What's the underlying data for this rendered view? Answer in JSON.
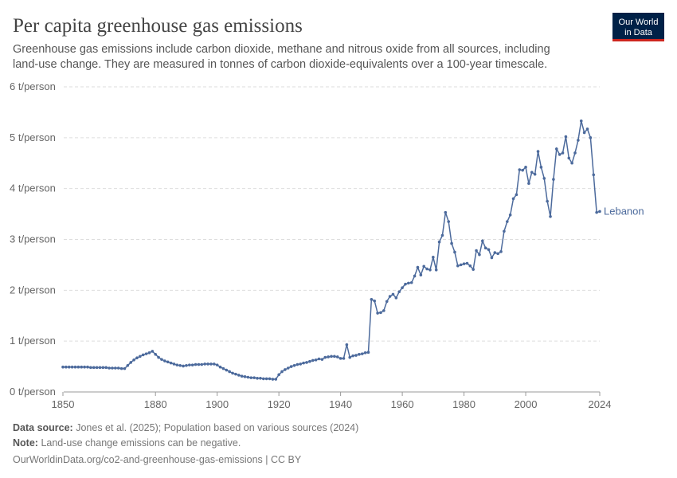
{
  "chart_data": {
    "type": "line",
    "title": "Per capita greenhouse gas emissions",
    "subtitle": [
      "Greenhouse gas emissions include carbon dioxide, methane and nitrous oxide from all sources, including",
      "land-use change. They are measured in tonnes of carbon dioxide-equivalents over a 100-year timescale."
    ],
    "logo": [
      "Our World",
      "in Data"
    ],
    "source": {
      "label": "Data source:",
      "text": "Jones et al. (2025); Population based on various sources (2024)"
    },
    "note": {
      "label": "Note:",
      "text": "Land-use change emissions can be negative."
    },
    "url": "OurWorldinData.org/co2-and-greenhouse-gas-emissions | CC BY",
    "x": [
      1850,
      1851,
      1852,
      1853,
      1854,
      1855,
      1856,
      1857,
      1858,
      1859,
      1860,
      1861,
      1862,
      1863,
      1864,
      1865,
      1866,
      1867,
      1868,
      1869,
      1870,
      1871,
      1872,
      1873,
      1874,
      1875,
      1876,
      1877,
      1878,
      1879,
      1880,
      1881,
      1882,
      1883,
      1884,
      1885,
      1886,
      1887,
      1888,
      1889,
      1890,
      1891,
      1892,
      1893,
      1894,
      1895,
      1896,
      1897,
      1898,
      1899,
      1900,
      1901,
      1902,
      1903,
      1904,
      1905,
      1906,
      1907,
      1908,
      1909,
      1910,
      1911,
      1912,
      1913,
      1914,
      1915,
      1916,
      1917,
      1918,
      1919,
      1920,
      1921,
      1922,
      1923,
      1924,
      1925,
      1926,
      1927,
      1928,
      1929,
      1930,
      1931,
      1932,
      1933,
      1934,
      1935,
      1936,
      1937,
      1938,
      1939,
      1940,
      1941,
      1942,
      1943,
      1944,
      1945,
      1946,
      1947,
      1948,
      1949,
      1950,
      1951,
      1952,
      1953,
      1954,
      1955,
      1956,
      1957,
      1958,
      1959,
      1960,
      1961,
      1962,
      1963,
      1964,
      1965,
      1966,
      1967,
      1968,
      1969,
      1970,
      1971,
      1972,
      1973,
      1974,
      1975,
      1976,
      1977,
      1978,
      1979,
      1980,
      1981,
      1982,
      1983,
      1984,
      1985,
      1986,
      1987,
      1988,
      1989,
      1990,
      1991,
      1992,
      1993,
      1994,
      1995,
      1996,
      1997,
      1998,
      1999,
      2000,
      2001,
      2002,
      2003,
      2004,
      2005,
      2006,
      2007,
      2008,
      2009,
      2010,
      2011,
      2012,
      2013,
      2014,
      2015,
      2016,
      2017,
      2018,
      2019,
      2020,
      2021,
      2022,
      2023,
      2024
    ],
    "series": [
      {
        "name": "Lebanon",
        "color": "#4c6a9c",
        "values": [
          0.49,
          0.49,
          0.49,
          0.49,
          0.49,
          0.49,
          0.49,
          0.49,
          0.49,
          0.48,
          0.48,
          0.48,
          0.48,
          0.48,
          0.48,
          0.47,
          0.47,
          0.47,
          0.47,
          0.46,
          0.46,
          0.52,
          0.58,
          0.63,
          0.67,
          0.7,
          0.73,
          0.75,
          0.77,
          0.8,
          0.74,
          0.68,
          0.64,
          0.61,
          0.59,
          0.57,
          0.55,
          0.53,
          0.52,
          0.51,
          0.52,
          0.53,
          0.53,
          0.54,
          0.54,
          0.54,
          0.55,
          0.55,
          0.55,
          0.55,
          0.53,
          0.49,
          0.46,
          0.43,
          0.4,
          0.37,
          0.35,
          0.33,
          0.31,
          0.3,
          0.29,
          0.28,
          0.28,
          0.27,
          0.27,
          0.26,
          0.26,
          0.26,
          0.25,
          0.25,
          0.34,
          0.4,
          0.44,
          0.47,
          0.5,
          0.52,
          0.54,
          0.55,
          0.57,
          0.58,
          0.6,
          0.62,
          0.63,
          0.65,
          0.64,
          0.68,
          0.69,
          0.7,
          0.7,
          0.69,
          0.66,
          0.66,
          0.93,
          0.68,
          0.71,
          0.72,
          0.74,
          0.75,
          0.77,
          0.78,
          1.82,
          1.79,
          1.55,
          1.56,
          1.6,
          1.78,
          1.88,
          1.92,
          1.85,
          1.97,
          2.05,
          2.12,
          2.14,
          2.15,
          2.28,
          2.45,
          2.3,
          2.47,
          2.42,
          2.4,
          2.65,
          2.4,
          2.95,
          3.08,
          3.53,
          3.35,
          2.92,
          2.75,
          2.48,
          2.5,
          2.52,
          2.53,
          2.48,
          2.41,
          2.78,
          2.7,
          2.97,
          2.83,
          2.8,
          2.64,
          2.74,
          2.72,
          2.76,
          3.16,
          3.35,
          3.48,
          3.8,
          3.88,
          4.37,
          4.36,
          4.42,
          4.1,
          4.32,
          4.28,
          4.73,
          4.42,
          4.2,
          3.75,
          3.45,
          4.18,
          4.78,
          4.67,
          4.7,
          5.02,
          4.6,
          4.5,
          4.7,
          4.95,
          5.33,
          5.1,
          5.17,
          5.0,
          4.27,
          3.53,
          3.55
        ]
      }
    ],
    "xlim": [
      1850,
      2024
    ],
    "xticks": [
      1850,
      1880,
      1900,
      1920,
      1940,
      1960,
      1980,
      2000,
      2024
    ],
    "ylim": [
      0,
      6
    ],
    "yticks": [
      {
        "value": 0,
        "label": "0 t/person"
      },
      {
        "value": 1,
        "label": "1 t/person"
      },
      {
        "value": 2,
        "label": "2 t/person"
      },
      {
        "value": 3,
        "label": "3 t/person"
      },
      {
        "value": 4,
        "label": "4 t/person"
      },
      {
        "value": 5,
        "label": "5 t/person"
      },
      {
        "value": 6,
        "label": "6 t/person"
      }
    ],
    "grid": true
  }
}
